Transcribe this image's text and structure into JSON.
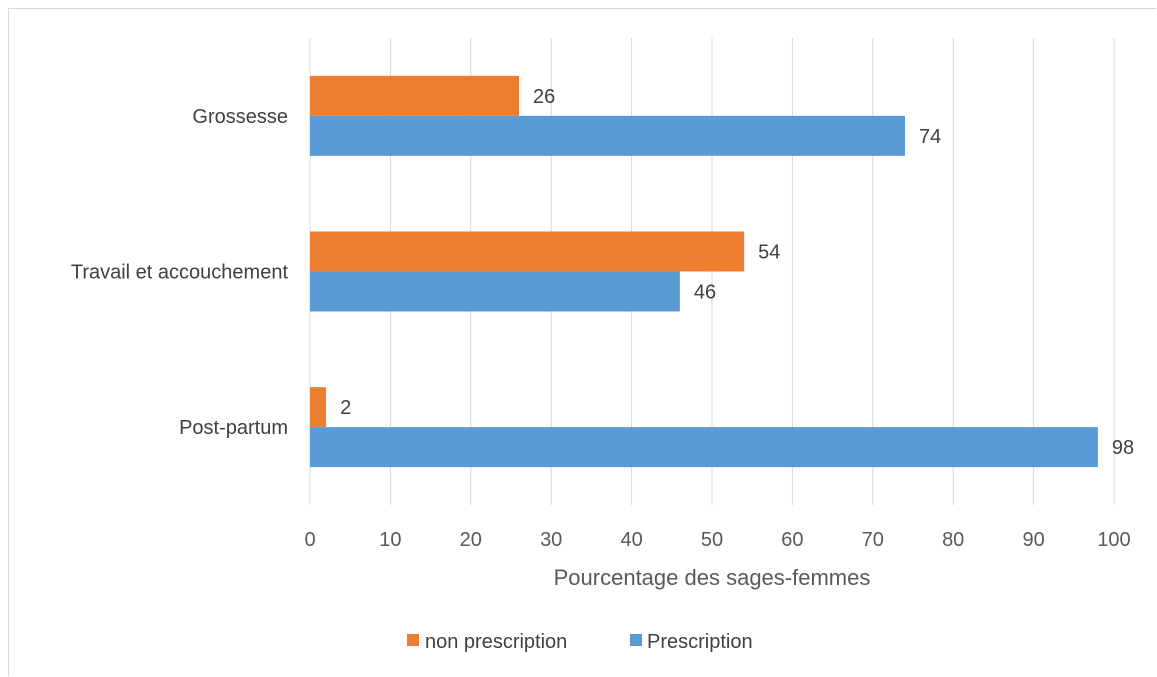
{
  "chart_data": {
    "type": "bar",
    "orientation": "horizontal",
    "categories": [
      "Grossesse",
      "Travail et accouchement",
      "Post-partum"
    ],
    "series": [
      {
        "name": "non prescription",
        "values": [
          26,
          54,
          2
        ],
        "color": "#ED7D31"
      },
      {
        "name": "Prescription",
        "values": [
          74,
          46,
          98
        ],
        "color": "#5B9BD5"
      }
    ],
    "xlabel": "Pourcentage des sages-femmes",
    "xlim": [
      0,
      100
    ],
    "xticks": [
      0,
      10,
      20,
      30,
      40,
      50,
      60,
      70,
      80,
      90,
      100
    ],
    "grid": "vertical",
    "legend_position": "bottom",
    "data_labels": true
  }
}
